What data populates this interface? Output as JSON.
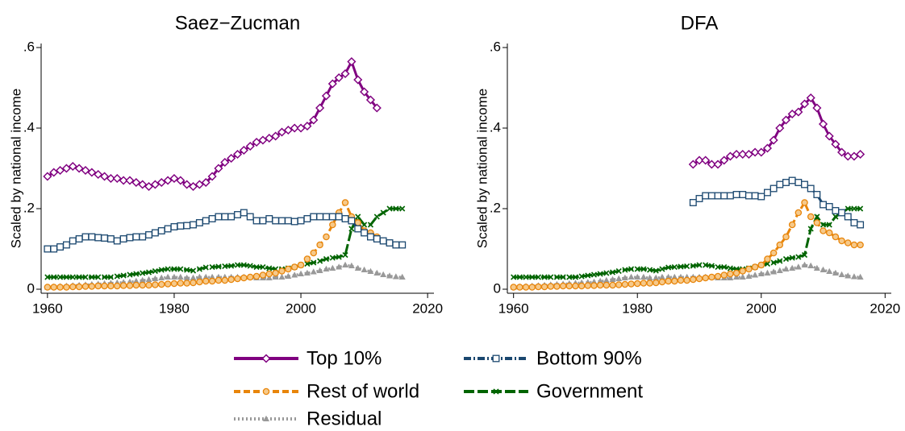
{
  "chart_data": [
    {
      "type": "line",
      "title": "Saez−Zucman",
      "ylabel": "Scaled by national income",
      "xlim": [
        1959,
        2021
      ],
      "ylim": [
        -0.01,
        0.61
      ],
      "xticks": [
        1960,
        1980,
        2000,
        2020
      ],
      "yticks": [
        0,
        {
          "value": 0.2,
          "label": ".2"
        },
        {
          "value": 0.4,
          "label": ".4"
        },
        {
          "value": 0.6,
          "label": ".6"
        }
      ],
      "x": [
        1960,
        1961,
        1962,
        1963,
        1964,
        1965,
        1966,
        1967,
        1968,
        1969,
        1970,
        1971,
        1972,
        1973,
        1974,
        1975,
        1976,
        1977,
        1978,
        1979,
        1980,
        1981,
        1982,
        1983,
        1984,
        1985,
        1986,
        1987,
        1988,
        1989,
        1990,
        1991,
        1992,
        1993,
        1994,
        1995,
        1996,
        1997,
        1998,
        1999,
        2000,
        2001,
        2002,
        2003,
        2004,
        2005,
        2006,
        2007,
        2008,
        2009,
        2010,
        2011,
        2012,
        2013,
        2014,
        2015,
        2016
      ],
      "series": [
        {
          "name": "Top 10%",
          "color": "#800080",
          "marker": "diamond",
          "dash": "solid",
          "values": [
            0.28,
            0.29,
            0.295,
            0.3,
            0.305,
            0.3,
            0.295,
            0.29,
            0.285,
            0.28,
            0.275,
            0.275,
            0.27,
            0.27,
            0.265,
            0.26,
            0.255,
            0.26,
            0.265,
            0.27,
            0.275,
            0.27,
            0.26,
            0.255,
            0.26,
            0.265,
            0.28,
            0.3,
            0.315,
            0.325,
            0.335,
            0.345,
            0.355,
            0.365,
            0.37,
            0.375,
            0.38,
            0.39,
            0.395,
            0.4,
            0.4,
            0.405,
            0.42,
            0.45,
            0.48,
            0.51,
            0.525,
            0.535,
            0.565,
            0.52,
            0.49,
            0.47,
            0.45,
            null,
            null,
            null,
            null
          ]
        },
        {
          "name": "Bottom 90%",
          "color": "#1a476f",
          "marker": "square",
          "dash": "dashdot",
          "values": [
            0.1,
            0.1,
            0.105,
            0.11,
            0.12,
            0.125,
            0.13,
            0.13,
            0.128,
            0.127,
            0.125,
            0.12,
            0.125,
            0.128,
            0.13,
            0.13,
            0.135,
            0.14,
            0.145,
            0.15,
            0.155,
            0.157,
            0.158,
            0.16,
            0.165,
            0.17,
            0.175,
            0.18,
            0.18,
            0.18,
            0.185,
            0.19,
            0.18,
            0.17,
            0.17,
            0.175,
            0.17,
            0.17,
            0.17,
            0.168,
            0.17,
            0.175,
            0.18,
            0.18,
            0.18,
            0.18,
            0.18,
            0.175,
            0.17,
            0.15,
            0.14,
            0.13,
            0.125,
            0.12,
            0.115,
            0.11,
            0.11
          ]
        },
        {
          "name": "Rest of world",
          "color": "#e8850a",
          "marker": "circle",
          "dash": "dash",
          "values": [
            0.005,
            0.005,
            0.005,
            0.005,
            0.006,
            0.006,
            0.007,
            0.007,
            0.008,
            0.008,
            0.008,
            0.008,
            0.009,
            0.009,
            0.01,
            0.01,
            0.01,
            0.011,
            0.012,
            0.013,
            0.014,
            0.015,
            0.015,
            0.016,
            0.018,
            0.02,
            0.02,
            0.022,
            0.022,
            0.024,
            0.026,
            0.028,
            0.03,
            0.032,
            0.035,
            0.038,
            0.04,
            0.045,
            0.05,
            0.055,
            0.06,
            0.075,
            0.09,
            0.11,
            0.13,
            0.16,
            0.19,
            0.215,
            0.18,
            0.165,
            0.145,
            0.14,
            0.13,
            0.12,
            0.115,
            0.11,
            0.11
          ]
        },
        {
          "name": "Government",
          "color": "#006400",
          "marker": "x",
          "dash": "longdash",
          "values": [
            0.03,
            0.03,
            0.03,
            0.03,
            0.03,
            0.03,
            0.03,
            0.03,
            0.03,
            0.03,
            0.03,
            0.032,
            0.034,
            0.036,
            0.038,
            0.04,
            0.042,
            0.045,
            0.048,
            0.05,
            0.05,
            0.05,
            0.048,
            0.046,
            0.05,
            0.054,
            0.055,
            0.056,
            0.057,
            0.058,
            0.06,
            0.06,
            0.058,
            0.055,
            0.055,
            0.052,
            0.05,
            0.05,
            0.052,
            0.055,
            0.06,
            0.063,
            0.066,
            0.07,
            0.075,
            0.078,
            0.08,
            0.085,
            0.15,
            0.18,
            0.16,
            0.16,
            0.18,
            0.19,
            0.2,
            0.2,
            0.2
          ]
        },
        {
          "name": "Residual",
          "color": "#999999",
          "marker": "triangle",
          "dash": "dot",
          "values": [
            0.005,
            0.006,
            0.007,
            0.008,
            0.009,
            0.01,
            0.011,
            0.012,
            0.013,
            0.014,
            0.015,
            0.016,
            0.017,
            0.018,
            0.02,
            0.022,
            0.024,
            0.026,
            0.028,
            0.03,
            0.03,
            0.03,
            0.028,
            0.028,
            0.03,
            0.03,
            0.03,
            0.03,
            0.03,
            0.03,
            0.03,
            0.03,
            0.03,
            0.028,
            0.028,
            0.028,
            0.03,
            0.03,
            0.032,
            0.035,
            0.038,
            0.04,
            0.043,
            0.046,
            0.05,
            0.052,
            0.055,
            0.06,
            0.058,
            0.052,
            0.048,
            0.044,
            0.04,
            0.036,
            0.033,
            0.031,
            0.03
          ]
        }
      ]
    },
    {
      "type": "line",
      "title": "DFA",
      "ylabel": "Scaled by national income",
      "xlim": [
        1959,
        2021
      ],
      "ylim": [
        -0.01,
        0.61
      ],
      "xticks": [
        1960,
        1980,
        2000,
        2020
      ],
      "yticks": [
        0,
        {
          "value": 0.2,
          "label": ".2"
        },
        {
          "value": 0.4,
          "label": ".4"
        },
        {
          "value": 0.6,
          "label": ".6"
        }
      ],
      "x": [
        1960,
        1961,
        1962,
        1963,
        1964,
        1965,
        1966,
        1967,
        1968,
        1969,
        1970,
        1971,
        1972,
        1973,
        1974,
        1975,
        1976,
        1977,
        1978,
        1979,
        1980,
        1981,
        1982,
        1983,
        1984,
        1985,
        1986,
        1987,
        1988,
        1989,
        1990,
        1991,
        1992,
        1993,
        1994,
        1995,
        1996,
        1997,
        1998,
        1999,
        2000,
        2001,
        2002,
        2003,
        2004,
        2005,
        2006,
        2007,
        2008,
        2009,
        2010,
        2011,
        2012,
        2013,
        2014,
        2015,
        2016
      ],
      "series": [
        {
          "color": "#800080",
          "marker": "diamond",
          "dash": "solid",
          "values": [
            null,
            null,
            null,
            null,
            null,
            null,
            null,
            null,
            null,
            null,
            null,
            null,
            null,
            null,
            null,
            null,
            null,
            null,
            null,
            null,
            null,
            null,
            null,
            null,
            null,
            null,
            null,
            null,
            null,
            0.31,
            0.32,
            0.32,
            0.31,
            0.31,
            0.32,
            0.33,
            0.335,
            0.335,
            0.335,
            0.34,
            0.34,
            0.35,
            0.37,
            0.4,
            0.42,
            0.435,
            0.44,
            0.46,
            0.475,
            0.45,
            0.41,
            0.38,
            0.36,
            0.34,
            0.33,
            0.33,
            0.335
          ]
        },
        {
          "color": "#1a476f",
          "marker": "square",
          "dash": "dashdot",
          "values": [
            null,
            null,
            null,
            null,
            null,
            null,
            null,
            null,
            null,
            null,
            null,
            null,
            null,
            null,
            null,
            null,
            null,
            null,
            null,
            null,
            null,
            null,
            null,
            null,
            null,
            null,
            null,
            null,
            null,
            0.215,
            0.225,
            0.232,
            0.232,
            0.232,
            0.232,
            0.232,
            0.235,
            0.235,
            0.232,
            0.232,
            0.23,
            0.24,
            0.25,
            0.26,
            0.265,
            0.27,
            0.265,
            0.26,
            0.25,
            0.235,
            0.21,
            0.205,
            0.195,
            0.19,
            0.18,
            0.165,
            0.16
          ]
        },
        {
          "color": "#e8850a",
          "marker": "circle",
          "dash": "dash",
          "values": [
            0.005,
            0.005,
            0.005,
            0.005,
            0.006,
            0.006,
            0.007,
            0.007,
            0.008,
            0.008,
            0.008,
            0.008,
            0.009,
            0.009,
            0.01,
            0.01,
            0.01,
            0.011,
            0.012,
            0.013,
            0.014,
            0.015,
            0.015,
            0.016,
            0.018,
            0.02,
            0.02,
            0.022,
            0.022,
            0.024,
            0.026,
            0.028,
            0.03,
            0.032,
            0.035,
            0.038,
            0.04,
            0.045,
            0.05,
            0.055,
            0.06,
            0.075,
            0.09,
            0.11,
            0.13,
            0.16,
            0.19,
            0.215,
            0.18,
            0.165,
            0.145,
            0.14,
            0.13,
            0.12,
            0.115,
            0.11,
            0.11
          ]
        },
        {
          "color": "#006400",
          "marker": "x",
          "dash": "longdash",
          "values": [
            0.03,
            0.03,
            0.03,
            0.03,
            0.03,
            0.03,
            0.03,
            0.03,
            0.03,
            0.03,
            0.03,
            0.032,
            0.034,
            0.036,
            0.038,
            0.04,
            0.042,
            0.045,
            0.048,
            0.05,
            0.05,
            0.05,
            0.048,
            0.046,
            0.05,
            0.054,
            0.055,
            0.056,
            0.057,
            0.058,
            0.06,
            0.06,
            0.058,
            0.055,
            0.055,
            0.052,
            0.05,
            0.05,
            0.052,
            0.055,
            0.06,
            0.063,
            0.066,
            0.07,
            0.075,
            0.078,
            0.08,
            0.085,
            0.15,
            0.18,
            0.16,
            0.16,
            0.18,
            0.19,
            0.2,
            0.2,
            0.2
          ]
        },
        {
          "color": "#999999",
          "marker": "triangle",
          "dash": "dot",
          "values": [
            0.005,
            0.006,
            0.007,
            0.008,
            0.009,
            0.01,
            0.011,
            0.012,
            0.013,
            0.014,
            0.015,
            0.016,
            0.017,
            0.018,
            0.02,
            0.022,
            0.024,
            0.026,
            0.028,
            0.03,
            0.03,
            0.03,
            0.028,
            0.028,
            0.03,
            0.03,
            0.03,
            0.03,
            0.03,
            0.03,
            0.03,
            0.03,
            0.03,
            0.028,
            0.028,
            0.028,
            0.03,
            0.03,
            0.032,
            0.035,
            0.038,
            0.04,
            0.043,
            0.046,
            0.05,
            0.052,
            0.055,
            0.06,
            0.058,
            0.052,
            0.048,
            0.044,
            0.04,
            0.036,
            0.033,
            0.031,
            0.03
          ]
        }
      ]
    }
  ]
}
